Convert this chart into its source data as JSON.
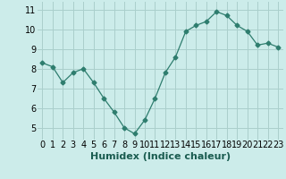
{
  "x": [
    0,
    1,
    2,
    3,
    4,
    5,
    6,
    7,
    8,
    9,
    10,
    11,
    12,
    13,
    14,
    15,
    16,
    17,
    18,
    19,
    20,
    21,
    22,
    23
  ],
  "y": [
    8.3,
    8.1,
    7.3,
    7.8,
    8.0,
    7.3,
    6.5,
    5.8,
    5.0,
    4.7,
    5.4,
    6.5,
    7.8,
    8.6,
    9.9,
    10.2,
    10.4,
    10.9,
    10.7,
    10.2,
    9.9,
    9.2,
    9.3,
    9.1
  ],
  "xlabel": "Humidex (Indice chaleur)",
  "ylim": [
    4.4,
    11.4
  ],
  "xlim": [
    -0.5,
    23.5
  ],
  "yticks": [
    5,
    6,
    7,
    8,
    9,
    10,
    11
  ],
  "xticks": [
    0,
    1,
    2,
    3,
    4,
    5,
    6,
    7,
    8,
    9,
    10,
    11,
    12,
    13,
    14,
    15,
    16,
    17,
    18,
    19,
    20,
    21,
    22,
    23
  ],
  "line_color": "#2e7d6e",
  "marker": "D",
  "marker_size": 2.5,
  "bg_color": "#ccecea",
  "grid_color": "#aacfcc",
  "tick_fontsize": 7,
  "xlabel_fontsize": 8
}
